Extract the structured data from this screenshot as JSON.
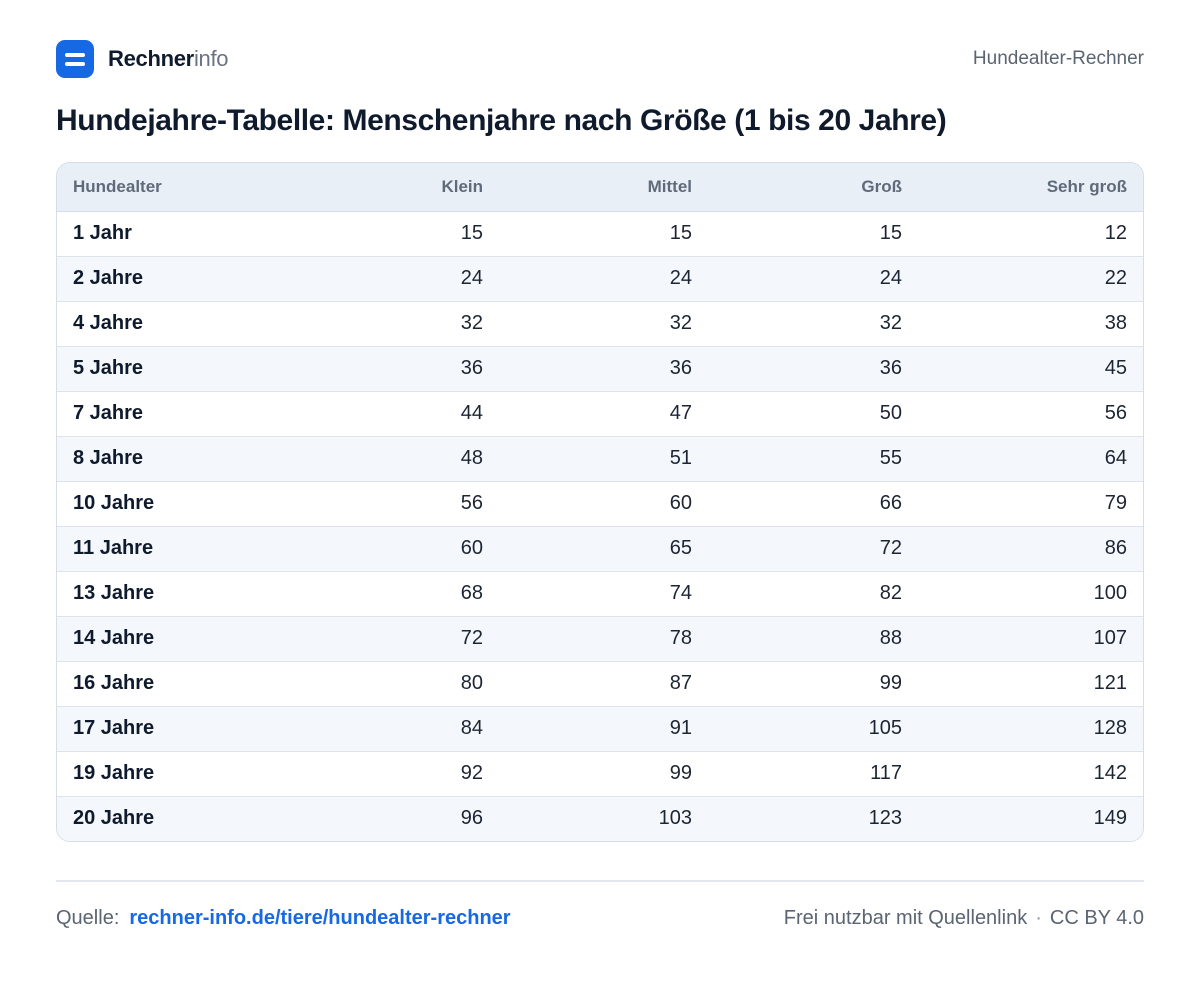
{
  "header": {
    "brand_strong": "Rechner",
    "brand_light": "info",
    "right_label": "Hundealter-Rechner"
  },
  "title": "Hundejahre-Tabelle: Menschenjahre nach Größe (1 bis 20 Jahre)",
  "table": {
    "columns": [
      "Hundealter",
      "Klein",
      "Mittel",
      "Groß",
      "Sehr groß"
    ],
    "rows": [
      [
        "1 Jahr",
        "15",
        "15",
        "15",
        "12"
      ],
      [
        "2 Jahre",
        "24",
        "24",
        "24",
        "22"
      ],
      [
        "4 Jahre",
        "32",
        "32",
        "32",
        "38"
      ],
      [
        "5 Jahre",
        "36",
        "36",
        "36",
        "45"
      ],
      [
        "7 Jahre",
        "44",
        "47",
        "50",
        "56"
      ],
      [
        "8 Jahre",
        "48",
        "51",
        "55",
        "64"
      ],
      [
        "10 Jahre",
        "56",
        "60",
        "66",
        "79"
      ],
      [
        "11 Jahre",
        "60",
        "65",
        "72",
        "86"
      ],
      [
        "13 Jahre",
        "68",
        "74",
        "82",
        "100"
      ],
      [
        "14 Jahre",
        "72",
        "78",
        "88",
        "107"
      ],
      [
        "16 Jahre",
        "80",
        "87",
        "99",
        "121"
      ],
      [
        "17 Jahre",
        "84",
        "91",
        "105",
        "128"
      ],
      [
        "19 Jahre",
        "92",
        "99",
        "117",
        "142"
      ],
      [
        "20 Jahre",
        "96",
        "103",
        "123",
        "149"
      ]
    ]
  },
  "footer": {
    "source_label": "Quelle:",
    "source_link": "rechner-info.de/tiere/hundealter-rechner",
    "license_text": "Frei nutzbar mit Quellenlink",
    "separator": "·",
    "license_name": "CC BY 4.0"
  },
  "colors": {
    "accent": "#1668e3",
    "header_bg": "#e9eff6",
    "zebra_bg": "#f4f7fb"
  }
}
